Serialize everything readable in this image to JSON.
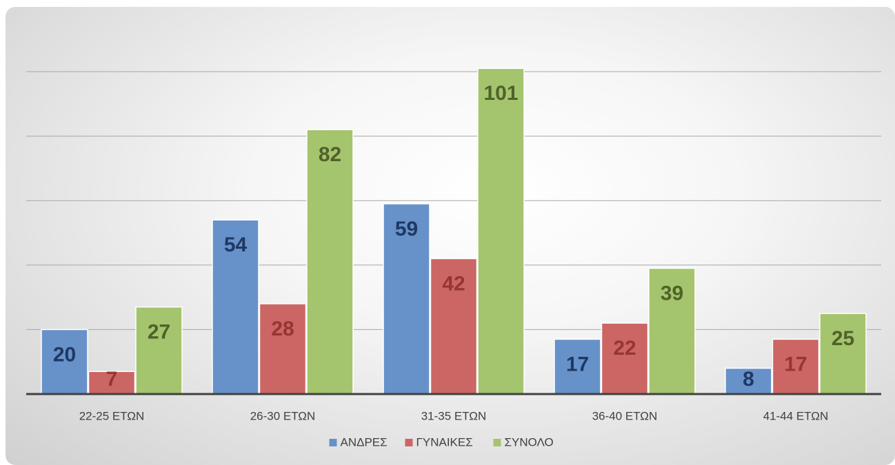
{
  "chart_data": {
    "type": "bar",
    "categories": [
      "22-25 ΕΤΩΝ",
      "26-30 ΕΤΩΝ",
      "31-35 ΕΤΩΝ",
      "36-40 ΕΤΩΝ",
      "41-44 ΕΤΩΝ"
    ],
    "series": [
      {
        "name": "ΑΝΔΡΕΣ",
        "color": "#6792c9",
        "label_color": "#1f3864",
        "values": [
          20,
          54,
          59,
          17,
          8
        ]
      },
      {
        "name": "ΓΥΝΑΙΚΕΣ",
        "color": "#cb6664",
        "label_color": "#943634",
        "values": [
          7,
          28,
          42,
          22,
          17
        ]
      },
      {
        "name": "ΣΥΝΟΛΟ",
        "color": "#a5c46e",
        "label_color": "#4f6228",
        "values": [
          27,
          82,
          101,
          39,
          25
        ]
      }
    ],
    "ylim": [
      0,
      100
    ],
    "yticks": [
      0,
      20,
      40,
      60,
      80,
      100
    ],
    "grid": true,
    "legend": "bottom"
  }
}
